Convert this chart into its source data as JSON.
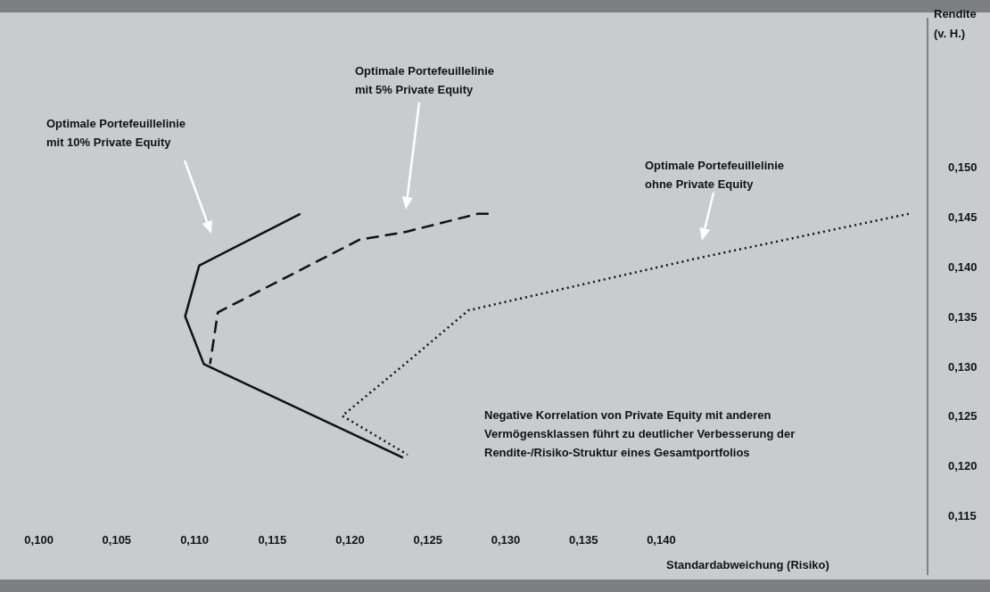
{
  "chart_data": {
    "type": "line",
    "xlabel": "Standardabweichung (Risiko)",
    "ylabel": "Rendite\n(v. H.)",
    "xlim": [
      0.0975,
      0.157
    ],
    "ylim": [
      0.109,
      0.165
    ],
    "xticks": [
      {
        "value": 0.1,
        "label": "0,100"
      },
      {
        "value": 0.105,
        "label": "0,105"
      },
      {
        "value": 0.11,
        "label": "0,110"
      },
      {
        "value": 0.115,
        "label": "0,115"
      },
      {
        "value": 0.12,
        "label": "0,120"
      },
      {
        "value": 0.125,
        "label": "0,125"
      },
      {
        "value": 0.13,
        "label": "0,130"
      },
      {
        "value": 0.135,
        "label": "0,135"
      },
      {
        "value": 0.14,
        "label": "0,140"
      }
    ],
    "yticks": [
      {
        "value": 0.115,
        "label": "0,115"
      },
      {
        "value": 0.12,
        "label": "0,120"
      },
      {
        "value": 0.125,
        "label": "0,125"
      },
      {
        "value": 0.13,
        "label": "0,130"
      },
      {
        "value": 0.135,
        "label": "0,135"
      },
      {
        "value": 0.14,
        "label": "0,140"
      },
      {
        "value": 0.145,
        "label": "0,145"
      },
      {
        "value": 0.15,
        "label": "0,150"
      }
    ],
    "grid": false,
    "series": [
      {
        "color": "#111111",
        "line_style": "solid",
        "x": [
          0.1168,
          0.1103,
          0.1094,
          0.1106,
          0.1234
        ],
        "values": [
          0.1453,
          0.1401,
          0.135,
          0.1302,
          0.1208
        ]
      },
      {
        "color": "#111111",
        "line_style": "dashed",
        "x": [
          0.1289,
          0.1282,
          0.1236,
          0.1206,
          0.1115,
          0.111
        ],
        "values": [
          0.1453,
          0.1453,
          0.1435,
          0.1427,
          0.1354,
          0.1302
        ]
      },
      {
        "color": "#111111",
        "line_style": "dotted",
        "x": [
          0.1559,
          0.1425,
          0.1276,
          0.1239,
          0.1195,
          0.1237
        ],
        "values": [
          0.1453,
          0.1409,
          0.1356,
          0.1307,
          0.125,
          0.1211
        ]
      }
    ],
    "annotations": [
      "Optimale Portefeuillelinie\nmit 10% Private Equity",
      "Optimale Portefeuillelinie\nmit 5% Private Equity",
      "Optimale Portefeuillelinie\nohne Private Equity",
      "Negative Korrelation von Private Equity mit anderen\nVermögensklassen führt zu deutlicher Verbesserung der\nRendite-/Risiko-Struktur eines Gesamtportfolios"
    ]
  }
}
